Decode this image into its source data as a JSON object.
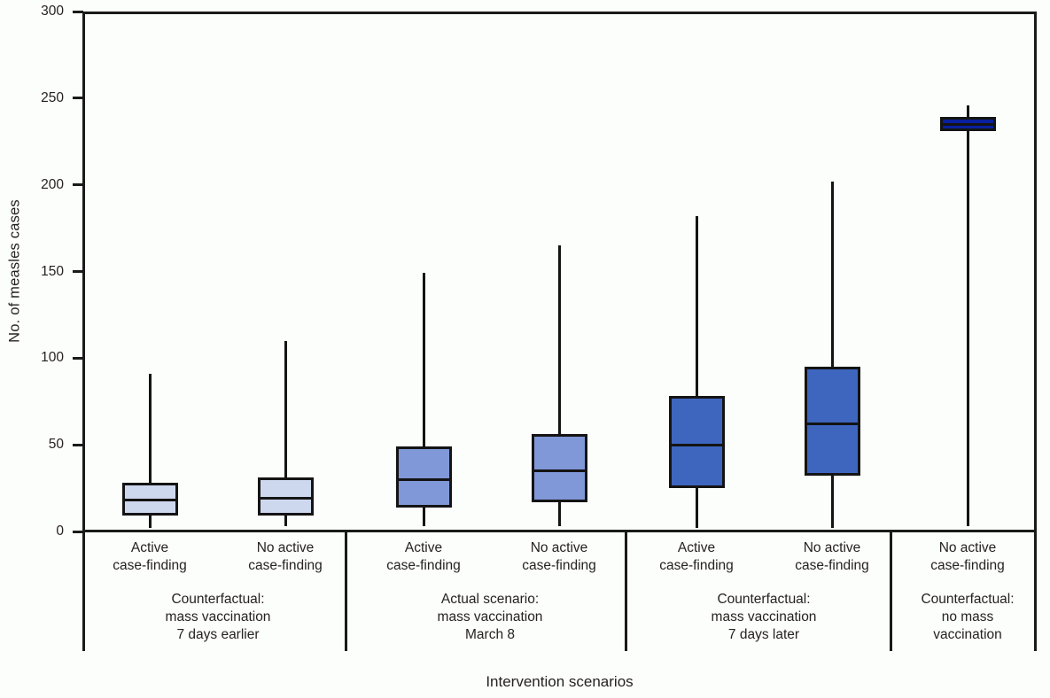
{
  "chart_data": {
    "type": "boxplot",
    "title": "",
    "xlabel": "Intervention scenarios",
    "ylabel": "No. of measles cases",
    "ylim": [
      0,
      300
    ],
    "yticks": [
      0,
      50,
      100,
      150,
      200,
      250,
      300
    ],
    "grid": false,
    "legend": "none",
    "groups": [
      {
        "label": "Counterfactual:\nmass vaccination\n7 days earlier",
        "boxes": [
          {
            "label": "Active\ncase-finding",
            "whisker_low": 2,
            "q1": 9,
            "median": 18,
            "q3": 28,
            "whisker_high": 91,
            "fill": "#cdd7ee",
            "texture": "none"
          },
          {
            "label": "No active\ncase-finding",
            "whisker_low": 3,
            "q1": 9,
            "median": 19,
            "q3": 31,
            "whisker_high": 110,
            "fill": "#cdd7ee",
            "texture": "none"
          }
        ]
      },
      {
        "label": "Actual scenario:\nmass vaccination\nMarch 8",
        "boxes": [
          {
            "label": "Active\ncase-finding",
            "whisker_low": 3,
            "q1": 14,
            "median": 30,
            "q3": 49,
            "whisker_high": 149,
            "fill": "#8097d8",
            "texture": "dots-light"
          },
          {
            "label": "No active\ncase-finding",
            "whisker_low": 3,
            "q1": 17,
            "median": 35,
            "q3": 56,
            "whisker_high": 165,
            "fill": "#8097d8",
            "texture": "dots-light"
          }
        ]
      },
      {
        "label": "Counterfactual:\nmass vaccination\n7 days later",
        "boxes": [
          {
            "label": "Active\ncase-finding",
            "whisker_low": 2,
            "q1": 25,
            "median": 50,
            "q3": 78,
            "whisker_high": 182,
            "fill": "#3e66bf",
            "texture": "dots-dark"
          },
          {
            "label": "No active\ncase-finding",
            "whisker_low": 2,
            "q1": 32,
            "median": 62,
            "q3": 95,
            "whisker_high": 202,
            "fill": "#3e66bf",
            "texture": "dots-dark"
          }
        ]
      },
      {
        "label": "Counterfactual:\nno mass\nvaccination",
        "boxes": [
          {
            "label": "No active\ncase-finding",
            "whisker_low": 3,
            "q1": 231,
            "median": 235,
            "q3": 239,
            "whisker_high": 246,
            "fill": "#0a1f9e",
            "texture": "none"
          }
        ]
      }
    ],
    "colors": {
      "box_light": "#cdd7ee",
      "box_medium": "#8097d8",
      "box_dark": "#3e66bf",
      "box_navy": "#0a1f9e",
      "line": "#1a1a1a"
    }
  }
}
